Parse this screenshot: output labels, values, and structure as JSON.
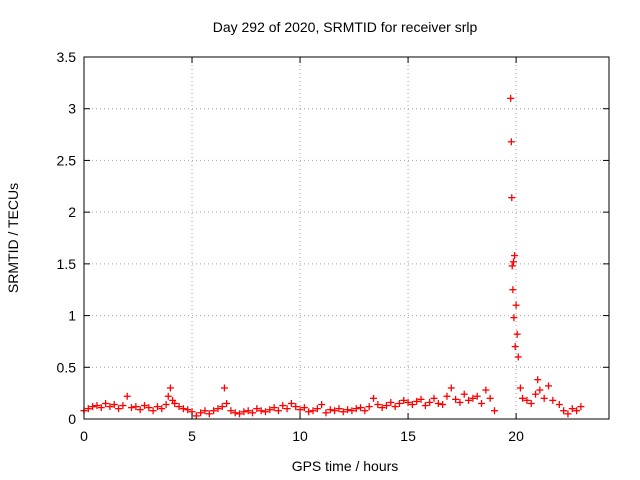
{
  "chart_data": {
    "type": "scatter",
    "title": "Day 292 of 2020, SRMTID for receiver srlp",
    "xlabel": "GPS time / hours",
    "ylabel": "SRMTID / TECUs",
    "xlim": [
      0,
      24.3
    ],
    "ylim": [
      0,
      3.5
    ],
    "xticks": [
      0,
      5,
      10,
      15,
      20
    ],
    "xtick_labels": [
      "0",
      "5",
      "10",
      "15",
      "20"
    ],
    "yticks": [
      0,
      0.5,
      1,
      1.5,
      2,
      2.5,
      3,
      3.5
    ],
    "ytick_labels": [
      "0",
      "0.5",
      "1",
      "1.5",
      "2",
      "2.5",
      "3",
      "3.5"
    ],
    "grid": true,
    "marker": "+",
    "marker_color": "#ff0000",
    "series": [
      {
        "x": [
          0.0,
          0.2,
          0.4,
          0.6,
          0.8,
          1.0,
          1.2,
          1.4,
          1.6,
          1.8,
          2.0,
          2.2,
          2.4,
          2.6,
          2.8,
          3.0,
          3.2,
          3.4,
          3.6,
          3.8,
          3.9,
          4.0,
          4.1,
          4.2,
          4.4,
          4.6,
          4.8,
          5.0,
          5.2,
          5.4,
          5.6,
          5.8,
          6.0,
          6.2,
          6.4,
          6.5,
          6.6,
          6.8,
          7.0,
          7.2,
          7.4,
          7.6,
          7.8,
          8.0,
          8.2,
          8.4,
          8.6,
          8.8,
          9.0,
          9.2,
          9.4,
          9.6,
          9.8,
          10.0,
          10.2,
          10.4,
          10.6,
          10.8,
          11.0,
          11.2,
          11.4,
          11.6,
          11.8,
          12.0,
          12.2,
          12.4,
          12.6,
          12.8,
          13.0,
          13.2,
          13.4,
          13.6,
          13.8,
          14.0,
          14.2,
          14.4,
          14.6,
          14.8,
          15.0,
          15.2,
          15.4,
          15.6,
          15.8,
          16.0,
          16.2,
          16.4,
          16.6,
          16.8,
          17.0,
          17.2,
          17.4,
          17.6,
          17.8,
          18.0,
          18.2,
          18.4,
          18.6,
          18.8,
          19.0,
          19.75,
          19.78,
          19.8,
          19.82,
          19.85,
          19.88,
          19.9,
          19.93,
          19.96,
          20.0,
          20.05,
          20.1,
          20.2,
          20.3,
          20.5,
          20.7,
          20.9,
          21.0,
          21.1,
          21.3,
          21.5,
          21.7,
          22.0,
          22.2,
          22.4,
          22.6,
          22.8,
          23.0
        ],
        "y": [
          0.08,
          0.1,
          0.12,
          0.13,
          0.11,
          0.15,
          0.12,
          0.14,
          0.1,
          0.13,
          0.22,
          0.11,
          0.12,
          0.09,
          0.13,
          0.11,
          0.08,
          0.12,
          0.1,
          0.14,
          0.22,
          0.3,
          0.18,
          0.15,
          0.12,
          0.1,
          0.09,
          0.07,
          0.03,
          0.06,
          0.08,
          0.05,
          0.08,
          0.1,
          0.12,
          0.3,
          0.15,
          0.08,
          0.06,
          0.05,
          0.07,
          0.08,
          0.06,
          0.1,
          0.08,
          0.07,
          0.09,
          0.11,
          0.08,
          0.13,
          0.1,
          0.15,
          0.12,
          0.09,
          0.11,
          0.07,
          0.08,
          0.1,
          0.14,
          0.06,
          0.09,
          0.08,
          0.1,
          0.07,
          0.09,
          0.08,
          0.1,
          0.11,
          0.08,
          0.12,
          0.2,
          0.14,
          0.11,
          0.13,
          0.16,
          0.12,
          0.15,
          0.18,
          0.16,
          0.14,
          0.17,
          0.19,
          0.13,
          0.16,
          0.2,
          0.15,
          0.14,
          0.22,
          0.3,
          0.19,
          0.16,
          0.24,
          0.18,
          0.2,
          0.22,
          0.15,
          0.28,
          0.2,
          0.08,
          3.1,
          2.68,
          2.14,
          1.48,
          1.25,
          1.52,
          0.98,
          1.58,
          0.7,
          1.1,
          0.82,
          0.6,
          0.3,
          0.2,
          0.18,
          0.15,
          0.24,
          0.38,
          0.28,
          0.2,
          0.32,
          0.18,
          0.14,
          0.08,
          0.05,
          0.1,
          0.08,
          0.12
        ]
      }
    ]
  }
}
